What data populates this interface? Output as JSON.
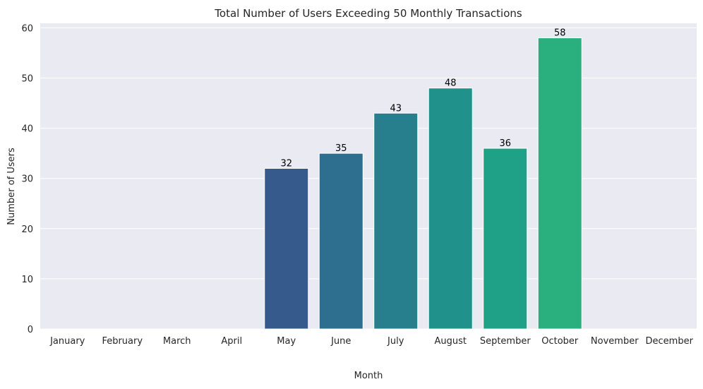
{
  "chart_data": {
    "type": "bar",
    "title": "Total Number of Users Exceeding 50 Monthly Transactions",
    "xlabel": "Month",
    "ylabel": "Number of Users",
    "categories": [
      "January",
      "February",
      "March",
      "April",
      "May",
      "June",
      "July",
      "August",
      "September",
      "October",
      "November",
      "December"
    ],
    "values": [
      0,
      0,
      0,
      0,
      32,
      35,
      43,
      48,
      36,
      58,
      0,
      0
    ],
    "data_labels": [
      "",
      "",
      "",
      "",
      "32",
      "35",
      "43",
      "48",
      "36",
      "58",
      "",
      ""
    ],
    "ylim": [
      0,
      60.9
    ],
    "yticks": [
      0,
      10,
      20,
      30,
      40,
      50,
      60
    ],
    "grid": true,
    "bar_colors": [
      "#440154",
      "#481a6c",
      "#472f7d",
      "#414487",
      "#375a8c",
      "#2e6e8e",
      "#277f8e",
      "#21918c",
      "#1fa188",
      "#2ab07f",
      "#44bf70",
      "#65cb5e"
    ],
    "colors": {
      "plot_background": "#eaeaf2",
      "grid": "#ffffff",
      "text": "#262626",
      "label_text": "#000000"
    }
  }
}
